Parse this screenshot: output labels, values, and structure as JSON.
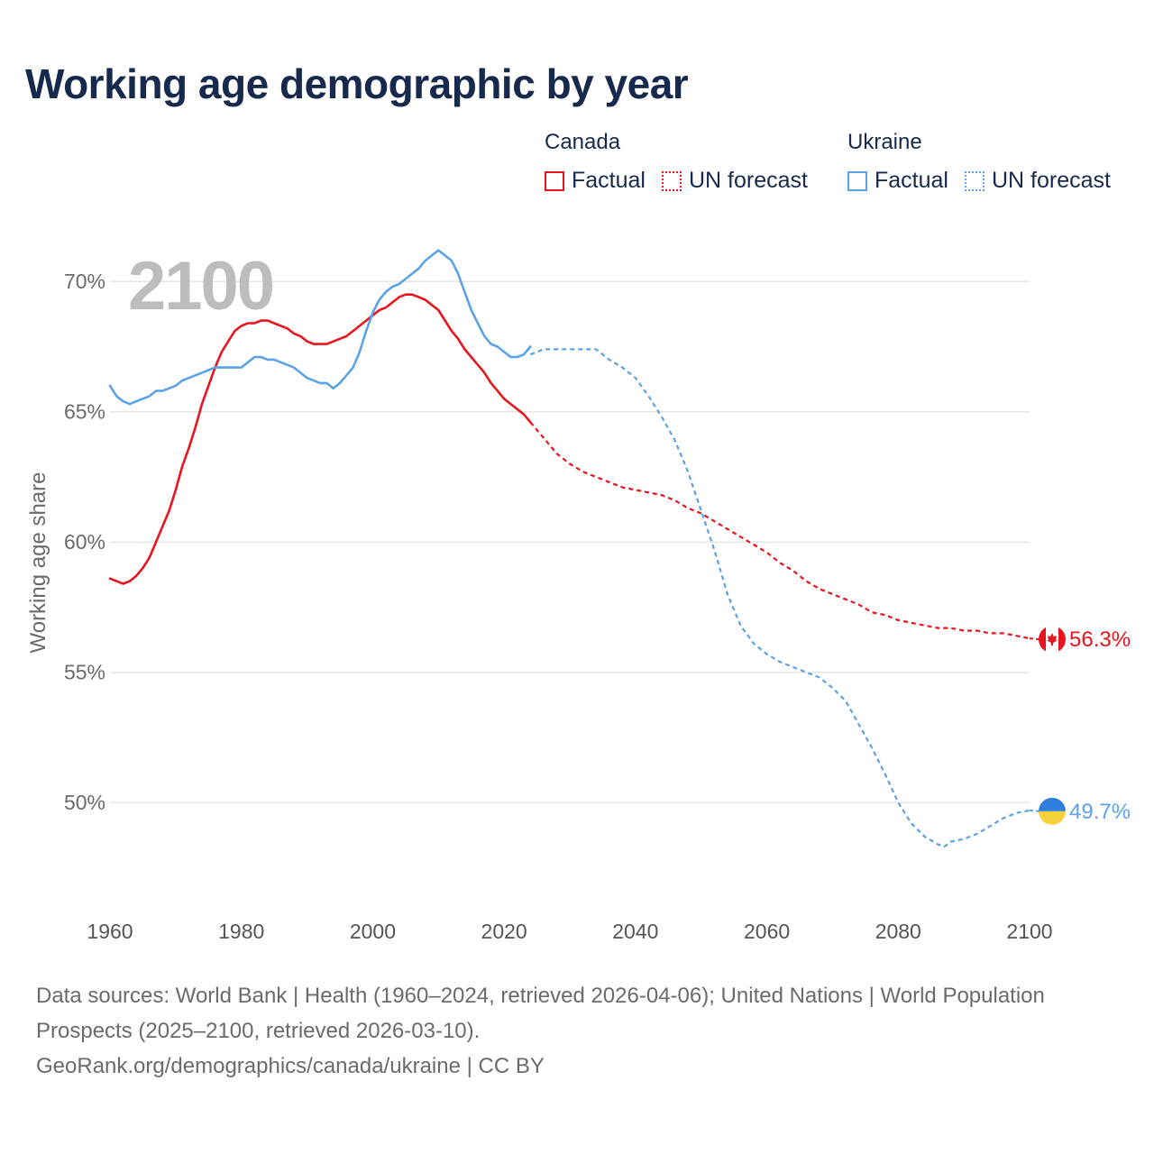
{
  "header": {
    "title": "Working age demographic by year"
  },
  "legend": {
    "groups": [
      {
        "name": "Canada",
        "factual_label": "Factual",
        "forecast_label": "UN forecast",
        "color": "#e8141e"
      },
      {
        "name": "Ukraine",
        "factual_label": "Factual",
        "forecast_label": "UN forecast",
        "color": "#5ba3e6"
      }
    ]
  },
  "chart_data": {
    "type": "line",
    "title": "Working age demographic by year",
    "ylabel": "Working age share",
    "xlabel": "",
    "year_label": "2100",
    "xlim": [
      1960,
      2100
    ],
    "ylim": [
      46.2,
      72.5
    ],
    "x_ticks": [
      1960,
      1980,
      2000,
      2020,
      2040,
      2060,
      2080,
      2100
    ],
    "x_tick_labels": [
      "1960",
      "1980",
      "2000",
      "2020",
      "2040",
      "2060",
      "2080",
      "2100"
    ],
    "y_ticks": [
      50,
      55,
      60,
      65,
      70
    ],
    "y_tick_labels": [
      "50%",
      "55%",
      "60%",
      "65%",
      "70%"
    ],
    "grid": true,
    "series": [
      {
        "name": "Canada",
        "color": "#e8141e",
        "end_label": "56.3%",
        "factual": {
          "x": [
            1960,
            1961,
            1962,
            1963,
            1964,
            1965,
            1966,
            1967,
            1968,
            1969,
            1970,
            1971,
            1972,
            1973,
            1974,
            1975,
            1976,
            1977,
            1978,
            1979,
            1980,
            1981,
            1982,
            1983,
            1984,
            1985,
            1986,
            1987,
            1988,
            1989,
            1990,
            1991,
            1992,
            1993,
            1994,
            1995,
            1996,
            1997,
            1998,
            1999,
            2000,
            2001,
            2002,
            2003,
            2004,
            2005,
            2006,
            2007,
            2008,
            2009,
            2010,
            2011,
            2012,
            2013,
            2014,
            2015,
            2016,
            2017,
            2018,
            2019,
            2020,
            2021,
            2022,
            2023,
            2024
          ],
          "y": [
            58.6,
            58.5,
            58.4,
            58.5,
            58.7,
            59.0,
            59.4,
            60.0,
            60.6,
            61.2,
            62.0,
            62.9,
            63.6,
            64.4,
            65.3,
            66.0,
            66.7,
            67.3,
            67.7,
            68.1,
            68.3,
            68.4,
            68.4,
            68.5,
            68.5,
            68.4,
            68.3,
            68.2,
            68.0,
            67.9,
            67.7,
            67.6,
            67.6,
            67.6,
            67.7,
            67.8,
            67.9,
            68.1,
            68.3,
            68.5,
            68.7,
            68.9,
            69.0,
            69.2,
            69.4,
            69.5,
            69.5,
            69.4,
            69.3,
            69.1,
            68.9,
            68.5,
            68.1,
            67.8,
            67.4,
            67.1,
            66.8,
            66.5,
            66.1,
            65.8,
            65.5,
            65.3,
            65.1,
            64.9,
            64.6
          ]
        },
        "forecast": {
          "x": [
            2024,
            2026,
            2028,
            2030,
            2032,
            2034,
            2036,
            2038,
            2040,
            2042,
            2044,
            2046,
            2048,
            2050,
            2052,
            2054,
            2056,
            2058,
            2060,
            2062,
            2064,
            2066,
            2068,
            2070,
            2072,
            2074,
            2076,
            2078,
            2080,
            2082,
            2084,
            2086,
            2088,
            2090,
            2092,
            2094,
            2096,
            2098,
            2100
          ],
          "y": [
            64.6,
            64.0,
            63.4,
            63.0,
            62.7,
            62.5,
            62.3,
            62.1,
            62.0,
            61.9,
            61.8,
            61.6,
            61.3,
            61.1,
            60.8,
            60.5,
            60.2,
            59.9,
            59.6,
            59.2,
            58.9,
            58.5,
            58.2,
            58.0,
            57.8,
            57.6,
            57.3,
            57.2,
            57.0,
            56.9,
            56.8,
            56.7,
            56.7,
            56.6,
            56.6,
            56.5,
            56.5,
            56.4,
            56.3
          ]
        }
      },
      {
        "name": "Ukraine",
        "color": "#5ba3e6",
        "end_label": "49.7%",
        "factual": {
          "x": [
            1960,
            1961,
            1962,
            1963,
            1964,
            1965,
            1966,
            1967,
            1968,
            1969,
            1970,
            1971,
            1972,
            1973,
            1974,
            1975,
            1976,
            1977,
            1978,
            1979,
            1980,
            1981,
            1982,
            1983,
            1984,
            1985,
            1986,
            1987,
            1988,
            1989,
            1990,
            1991,
            1992,
            1993,
            1994,
            1995,
            1996,
            1997,
            1998,
            1999,
            2000,
            2001,
            2002,
            2003,
            2004,
            2005,
            2006,
            2007,
            2008,
            2009,
            2010,
            2011,
            2012,
            2013,
            2014,
            2015,
            2016,
            2017,
            2018,
            2019,
            2020,
            2021,
            2022,
            2023,
            2024
          ],
          "y": [
            66.0,
            65.6,
            65.4,
            65.3,
            65.4,
            65.5,
            65.6,
            65.8,
            65.8,
            65.9,
            66.0,
            66.2,
            66.3,
            66.4,
            66.5,
            66.6,
            66.7,
            66.7,
            66.7,
            66.7,
            66.7,
            66.9,
            67.1,
            67.1,
            67.0,
            67.0,
            66.9,
            66.8,
            66.7,
            66.5,
            66.3,
            66.2,
            66.1,
            66.1,
            65.9,
            66.1,
            66.4,
            66.7,
            67.3,
            68.1,
            68.8,
            69.3,
            69.6,
            69.8,
            69.9,
            70.1,
            70.3,
            70.5,
            70.8,
            71.0,
            71.2,
            71.0,
            70.8,
            70.3,
            69.6,
            68.9,
            68.4,
            67.9,
            67.6,
            67.5,
            67.3,
            67.1,
            67.1,
            67.2,
            67.5
          ]
        },
        "forecast": {
          "x": [
            2024,
            2026,
            2028,
            2030,
            2032,
            2034,
            2036,
            2038,
            2040,
            2042,
            2044,
            2046,
            2048,
            2050,
            2052,
            2054,
            2056,
            2058,
            2060,
            2062,
            2064,
            2066,
            2068,
            2070,
            2072,
            2074,
            2076,
            2078,
            2080,
            2082,
            2084,
            2086,
            2087,
            2088,
            2090,
            2092,
            2094,
            2096,
            2098,
            2100
          ],
          "y": [
            67.2,
            67.4,
            67.4,
            67.4,
            67.4,
            67.4,
            67.0,
            66.7,
            66.3,
            65.6,
            64.8,
            63.9,
            62.7,
            61.2,
            59.7,
            58.0,
            56.8,
            56.1,
            55.7,
            55.4,
            55.2,
            55.0,
            54.8,
            54.4,
            53.9,
            53.0,
            52.1,
            51.1,
            50.0,
            49.2,
            48.7,
            48.4,
            48.3,
            48.5,
            48.6,
            48.8,
            49.1,
            49.4,
            49.6,
            49.7
          ]
        }
      }
    ]
  },
  "footer": {
    "sources": "Data sources: World Bank | Health (1960–2024, retrieved 2026-04-06); United Nations | World Population Prospects (2025–2100, retrieved 2026-03-10).",
    "credit": "GeoRank.org/demographics/canada/ukraine | CC BY"
  }
}
